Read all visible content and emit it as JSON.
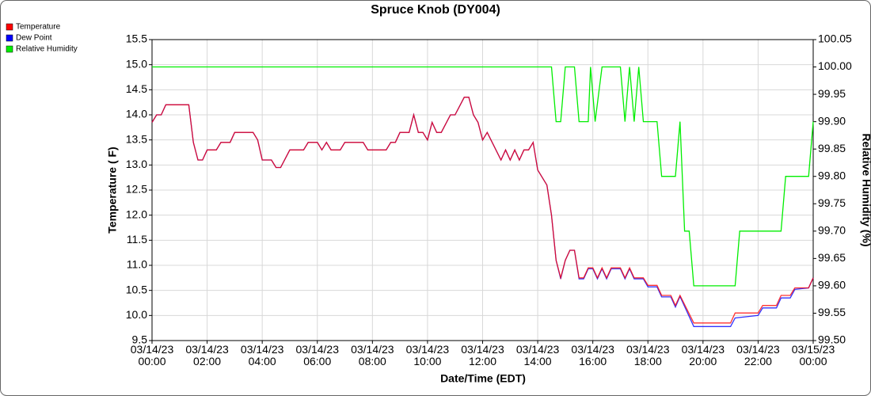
{
  "chart_data": {
    "type": "line",
    "title": "Spruce Knob (DY004)",
    "xlabel": "Date/Time (EDT)",
    "ylabel": "Temperature ( F)",
    "y2label": "Relative Humidity (%)",
    "x": [
      "03/14/23 00:00",
      "03/14/23 00:10",
      "03/14/23 00:20",
      "03/14/23 00:30",
      "03/14/23 01:10",
      "03/14/23 01:20",
      "03/14/23 01:30",
      "03/14/23 01:40",
      "03/14/23 01:50",
      "03/14/23 02:00",
      "03/14/23 02:20",
      "03/14/23 02:30",
      "03/14/23 02:50",
      "03/14/23 03:00",
      "03/14/23 03:40",
      "03/14/23 03:50",
      "03/14/23 04:00",
      "03/14/23 04:20",
      "03/14/23 04:30",
      "03/14/23 04:40",
      "03/14/23 05:00",
      "03/14/23 05:30",
      "03/14/23 05:40",
      "03/14/23 06:00",
      "03/14/23 06:10",
      "03/14/23 06:20",
      "03/14/23 06:30",
      "03/14/23 06:50",
      "03/14/23 07:00",
      "03/14/23 07:40",
      "03/14/23 07:50",
      "03/14/23 08:30",
      "03/14/23 08:40",
      "03/14/23 08:50",
      "03/14/23 09:00",
      "03/14/23 09:20",
      "03/14/23 09:30",
      "03/14/23 09:40",
      "03/14/23 09:50",
      "03/14/23 10:00",
      "03/14/23 10:10",
      "03/14/23 10:20",
      "03/14/23 10:30",
      "03/14/23 10:50",
      "03/14/23 11:00",
      "03/14/23 11:20",
      "03/14/23 11:30",
      "03/14/23 11:40",
      "03/14/23 11:50",
      "03/14/23 12:00",
      "03/14/23 12:10",
      "03/14/23 12:40",
      "03/14/23 12:50",
      "03/14/23 13:00",
      "03/14/23 13:10",
      "03/14/23 13:20",
      "03/14/23 13:30",
      "03/14/23 13:40",
      "03/14/23 13:50",
      "03/14/23 14:00",
      "03/14/23 14:20",
      "03/14/23 14:30",
      "03/14/23 14:40",
      "03/14/23 14:50",
      "03/14/23 15:00",
      "03/14/23 15:10",
      "03/14/23 15:20",
      "03/14/23 15:30",
      "03/14/23 15:40",
      "03/14/23 15:50",
      "03/14/23 16:00",
      "03/14/23 16:10",
      "03/14/23 16:20",
      "03/14/23 16:30",
      "03/14/23 16:40",
      "03/14/23 17:00",
      "03/14/23 17:10",
      "03/14/23 17:20",
      "03/14/23 17:30",
      "03/14/23 17:50",
      "03/14/23 18:00",
      "03/14/23 18:20",
      "03/14/23 18:30",
      "03/14/23 18:50",
      "03/14/23 19:00",
      "03/14/23 19:10",
      "03/14/23 19:40",
      "03/14/23 21:00",
      "03/14/23 21:10",
      "03/14/23 22:00",
      "03/14/23 22:10",
      "03/14/23 22:40",
      "03/14/23 22:50",
      "03/14/23 23:10",
      "03/14/23 23:20",
      "03/14/23 23:50",
      "03/15/23 00:00"
    ],
    "series": [
      {
        "name": "Dew Point",
        "color": "#0000ff",
        "values": [
          13.85,
          14.0,
          14.0,
          14.2,
          14.2,
          14.2,
          13.45,
          13.1,
          13.1,
          13.3,
          13.3,
          13.45,
          13.45,
          13.65,
          13.65,
          13.5,
          13.1,
          13.1,
          12.95,
          12.95,
          13.3,
          13.3,
          13.45,
          13.45,
          13.3,
          13.45,
          13.3,
          13.3,
          13.45,
          13.45,
          13.3,
          13.3,
          13.45,
          13.45,
          13.65,
          13.65,
          14.0,
          13.65,
          13.65,
          13.5,
          13.85,
          13.65,
          13.65,
          14.0,
          14.0,
          14.35,
          14.35,
          14.0,
          13.85,
          13.5,
          13.65,
          13.1,
          13.3,
          13.1,
          13.3,
          13.1,
          13.3,
          13.3,
          13.45,
          12.9,
          12.6,
          12.0,
          11.1,
          10.73,
          11.1,
          11.3,
          11.3,
          10.73,
          10.73,
          10.93,
          10.93,
          10.73,
          10.93,
          10.73,
          10.93,
          10.93,
          10.73,
          10.93,
          10.73,
          10.73,
          10.57,
          10.57,
          10.37,
          10.37,
          10.17,
          10.38,
          9.78,
          9.78,
          9.95,
          10.0,
          10.15,
          10.15,
          10.35,
          10.35,
          10.52,
          10.55,
          10.75
        ]
      },
      {
        "name": "Temperature",
        "color": "#ff0000",
        "values": [
          13.85,
          14.0,
          14.0,
          14.2,
          14.2,
          14.2,
          13.45,
          13.1,
          13.1,
          13.3,
          13.3,
          13.45,
          13.45,
          13.65,
          13.65,
          13.5,
          13.1,
          13.1,
          12.95,
          12.95,
          13.3,
          13.3,
          13.45,
          13.45,
          13.3,
          13.45,
          13.3,
          13.3,
          13.45,
          13.45,
          13.3,
          13.3,
          13.45,
          13.45,
          13.65,
          13.65,
          14.0,
          13.65,
          13.65,
          13.5,
          13.85,
          13.65,
          13.65,
          14.0,
          14.0,
          14.35,
          14.35,
          14.0,
          13.85,
          13.5,
          13.65,
          13.1,
          13.3,
          13.1,
          13.3,
          13.1,
          13.3,
          13.3,
          13.45,
          12.9,
          12.6,
          12.0,
          11.1,
          10.75,
          11.1,
          11.3,
          11.3,
          10.75,
          10.75,
          10.95,
          10.95,
          10.75,
          10.95,
          10.75,
          10.95,
          10.95,
          10.75,
          10.95,
          10.75,
          10.75,
          10.6,
          10.6,
          10.4,
          10.4,
          10.2,
          10.4,
          9.85,
          9.85,
          10.05,
          10.05,
          10.2,
          10.2,
          10.4,
          10.4,
          10.55,
          10.55,
          10.75
        ]
      },
      {
        "name": "Relative Humidity",
        "color": "#00ee00",
        "axis": "y2",
        "x": [
          "03/14/23 00:00",
          "03/14/23 14:30",
          "03/14/23 14:40",
          "03/14/23 14:50",
          "03/14/23 15:00",
          "03/14/23 15:20",
          "03/14/23 15:30",
          "03/14/23 15:50",
          "03/14/23 15:55",
          "03/14/23 16:05",
          "03/14/23 16:20",
          "03/14/23 17:00",
          "03/14/23 17:10",
          "03/14/23 17:20",
          "03/14/23 17:30",
          "03/14/23 17:40",
          "03/14/23 17:50",
          "03/14/23 18:20",
          "03/14/23 18:30",
          "03/14/23 19:00",
          "03/14/23 19:10",
          "03/14/23 19:20",
          "03/14/23 19:30",
          "03/14/23 19:40",
          "03/14/23 21:10",
          "03/14/23 21:20",
          "03/14/23 22:50",
          "03/14/23 23:00",
          "03/14/23 23:50",
          "03/15/23 00:00"
        ],
        "values": [
          100,
          100,
          99.9,
          99.9,
          100,
          100,
          99.9,
          99.9,
          100,
          99.9,
          100,
          100,
          99.9,
          100,
          99.9,
          100,
          99.9,
          99.9,
          99.8,
          99.8,
          99.9,
          99.7,
          99.7,
          99.6,
          99.6,
          99.7,
          99.7,
          99.8,
          99.8,
          99.9
        ]
      }
    ],
    "legend_order": [
      "Temperature",
      "Dew Point",
      "Relative Humidity"
    ],
    "xlim": [
      "03/14/23 00:00",
      "03/15/23 00:00"
    ],
    "xticks": [
      "03/14/23 00:00",
      "03/14/23 02:00",
      "03/14/23 04:00",
      "03/14/23 06:00",
      "03/14/23 08:00",
      "03/14/23 10:00",
      "03/14/23 12:00",
      "03/14/23 14:00",
      "03/14/23 16:00",
      "03/14/23 18:00",
      "03/14/23 20:00",
      "03/14/23 22:00",
      "03/15/23 00:00"
    ],
    "ylim": [
      9.5,
      15.5
    ],
    "yticks": [
      9.5,
      {
        "value": 10,
        "label": "10.0"
      },
      10.5,
      {
        "value": 11,
        "label": "11.0"
      },
      11.5,
      {
        "value": 12,
        "label": "12.0"
      },
      12.5,
      {
        "value": 13,
        "label": "13.0"
      },
      13.5,
      {
        "value": 14,
        "label": "14.0"
      },
      14.5,
      {
        "value": 15,
        "label": "15.0"
      },
      15.5
    ],
    "y2lim": [
      99.5,
      100.05
    ],
    "y2ticks": [
      {
        "value": 99.5,
        "label": "99.50"
      },
      99.55,
      {
        "value": 99.6,
        "label": "99.60"
      },
      99.65,
      {
        "value": 99.7,
        "label": "99.70"
      },
      99.75,
      {
        "value": 99.8,
        "label": "99.80"
      },
      99.85,
      {
        "value": 99.9,
        "label": "99.90"
      },
      99.95,
      {
        "value": 100,
        "label": "100.00"
      },
      100.05
    ],
    "grid": true,
    "legend": "upper left"
  }
}
